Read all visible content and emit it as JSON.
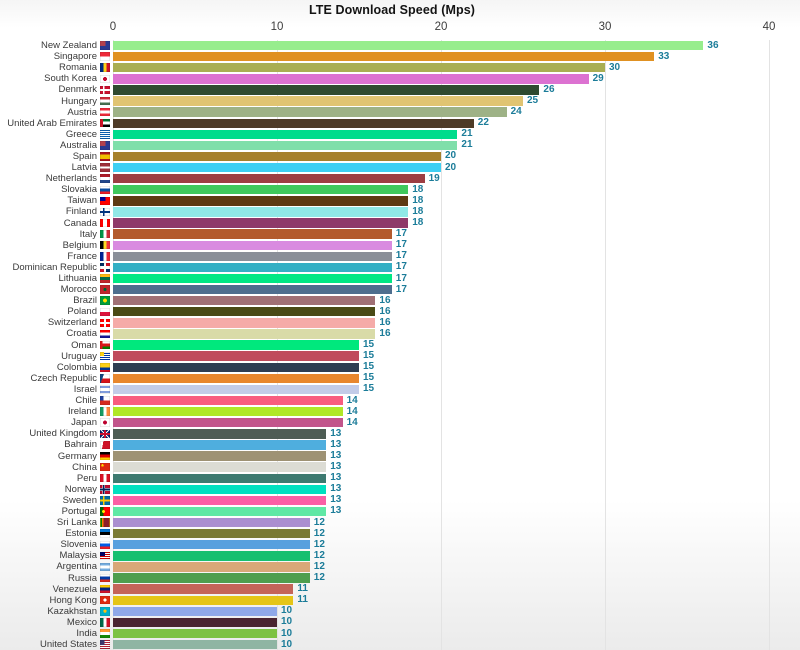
{
  "chart_data": {
    "type": "bar",
    "orientation": "horizontal",
    "title": "LTE Download Speed (Mps)",
    "xlabel": "",
    "ylabel": "",
    "xlim": [
      0,
      40
    ],
    "x_ticks": [
      0,
      10,
      20,
      30,
      40
    ],
    "axis_position": "top",
    "grid": true,
    "value_label_color": "#1b7c99",
    "categories": [
      "New Zealand",
      "Singapore",
      "Romania",
      "South Korea",
      "Denmark",
      "Hungary",
      "Austria",
      "United Arab Emirates",
      "Greece",
      "Australia",
      "Spain",
      "Latvia",
      "Netherlands",
      "Slovakia",
      "Taiwan",
      "Finland",
      "Canada",
      "Italy",
      "Belgium",
      "France",
      "Dominican Republic",
      "Lithuania",
      "Morocco",
      "Brazil",
      "Poland",
      "Switzerland",
      "Croatia",
      "Oman",
      "Uruguay",
      "Colombia",
      "Czech Republic",
      "Israel",
      "Chile",
      "Ireland",
      "Japan",
      "United Kingdom",
      "Bahrain",
      "Germany",
      "China",
      "Peru",
      "Norway",
      "Sweden",
      "Portugal",
      "Sri Lanka",
      "Estonia",
      "Slovenia",
      "Malaysia",
      "Argentina",
      "Russia",
      "Venezuela",
      "Hong Kong",
      "Kazakhstan",
      "Mexico",
      "India",
      "United States"
    ],
    "values": [
      36,
      33,
      30,
      29,
      26,
      25,
      24,
      22,
      21,
      21,
      20,
      20,
      19,
      18,
      18,
      18,
      18,
      17,
      17,
      17,
      17,
      17,
      17,
      16,
      16,
      16,
      16,
      15,
      15,
      15,
      15,
      15,
      14,
      14,
      14,
      13,
      13,
      13,
      13,
      13,
      13,
      13,
      13,
      12,
      12,
      12,
      12,
      12,
      12,
      11,
      11,
      10,
      10,
      10,
      10
    ],
    "bar_colors": [
      "#97ED8D",
      "#E09122",
      "#A9AE52",
      "#DC72D1",
      "#2F4A30",
      "#E0C472",
      "#9EB286",
      "#4E3B27",
      "#00DC8C",
      "#7FDFAA",
      "#A6802B",
      "#3ECFF2",
      "#9D3D42",
      "#3FC85C",
      "#5E3A13",
      "#90E8E6",
      "#8E3A69",
      "#B35A2D",
      "#D98BE0",
      "#8A8F99",
      "#33AFC4",
      "#00E884",
      "#4E6E8E",
      "#A07075",
      "#4A4A15",
      "#F5ABA8",
      "#D9DBA8",
      "#00E87D",
      "#C04B5C",
      "#2E3D52",
      "#E8872E",
      "#C3CCE8",
      "#F85C7F",
      "#B0E828",
      "#C2558B",
      "#4E5D54",
      "#4FAEDE",
      "#9E9274",
      "#DCDCD4",
      "#3D7A70",
      "#00E0C0",
      "#FA5FA5",
      "#5FE8A5",
      "#AB8ED0",
      "#7A7A33",
      "#57A0DE",
      "#17BF70",
      "#D8A878",
      "#4E9E4E",
      "#C46459",
      "#E5C517",
      "#8FA8E8",
      "#4A2430",
      "#7DC242",
      "#8FB5A3"
    ],
    "flag_backgrounds": [
      "linear-gradient(#b5414d,#b5414d) 0 0/55% 55% no-repeat,linear-gradient(#2b3a92,#2b3a92)",
      "linear-gradient(#ed2939 50%,#ffffff 50%)",
      "linear-gradient(90deg,#002b7f 33%,#fcd116 33% 66%,#ce1126 66%)",
      "radial-gradient(circle at 50% 50%,#c60c30 30%,transparent 31%),linear-gradient(#ffffff,#ffffff)",
      "linear-gradient(90deg,transparent 0 30%,#ffffff 30% 45%,transparent 45%),linear-gradient(0deg,transparent 0 38%,#ffffff 38% 62%,transparent 62%),linear-gradient(#c8102e,#c8102e)",
      "linear-gradient(#ce2939 33%,#ffffff 33% 66%,#477050 66%)",
      "linear-gradient(#ed2939 33%,#ffffff 33% 66%,#ed2939 66%)",
      "linear-gradient(90deg,#ce1126 0 28%,transparent 28%),linear-gradient(#00732f 33%,#ffffff 33% 66%,#000000 66%)",
      "repeating-linear-gradient(#0d5eaf 0 1px,#ffffff 1px 2px)",
      "linear-gradient(#b5414d,#b5414d) 0 0/55% 55% no-repeat,linear-gradient(#2b3a92,#2b3a92)",
      "linear-gradient(#aa151b 25%,#f1bf00 25% 75%,#aa151b 75%)",
      "linear-gradient(#9e3039 38%,#ffffff 38% 62%,#9e3039 62%)",
      "linear-gradient(#ae1c28 33%,#ffffff 33% 66%,#21468b 66%)",
      "linear-gradient(#ffffff 33%,#0b4ea2 33% 66%,#ee1c25 66%)",
      "linear-gradient(#000095,#000095) 0 0/55% 55% no-repeat,linear-gradient(#fe0000,#fe0000)",
      "linear-gradient(90deg,transparent 0 28%,#003580 28% 45%,transparent 45%),linear-gradient(0deg,transparent 0 38%,#003580 38% 62%,transparent 62%),linear-gradient(#ffffff,#ffffff)",
      "linear-gradient(90deg,#ff0000 30%,#ffffff 30% 70%,#ff0000 70%)",
      "linear-gradient(90deg,#009246 33%,#ffffff 33% 66%,#ce2b37 66%)",
      "linear-gradient(90deg,#000000 33%,#fdda24 33% 66%,#ef3340 66%)",
      "linear-gradient(90deg,#002395 33%,#ffffff 33% 66%,#ed2939 66%)",
      "linear-gradient(90deg,transparent 0 40%,#ffffff 40% 60%,transparent 60%),linear-gradient(0deg,transparent 0 35%,#ffffff 35% 65%,transparent 65%),linear-gradient(180deg,#002d62 50%,#ce1126 50%) 0 0/50% 100% no-repeat,linear-gradient(180deg,#ce1126 50%,#002d62 50%) 100% 0/50% 100% no-repeat",
      "linear-gradient(#fdb913 33%,#006a44 33% 66%,#c1272d 66%)",
      "radial-gradient(circle at 50% 50%,#006233 22%,transparent 23%),linear-gradient(#c1272d,#c1272d)",
      "radial-gradient(circle at 50% 50%,#ffdf00 28%,transparent 29%),linear-gradient(#009c3b,#009c3b)",
      "linear-gradient(#ffffff 50%,#dc143c 50%)",
      "linear-gradient(90deg,transparent 0 38%,#ffffff 38% 62%,transparent 62%),linear-gradient(0deg,transparent 0 38%,#ffffff 38% 62%,transparent 62%),linear-gradient(#ff0000,#ff0000)",
      "linear-gradient(#ff0000 33%,#ffffff 33% 66%,#171796 66%)",
      "linear-gradient(90deg,#db161b 0 25%,transparent 25%),linear-gradient(#ffffff 33%,#db161b 33% 66%,#008000 66%)",
      "linear-gradient(#fcd116,#fcd116) 0 0/40% 50% no-repeat,repeating-linear-gradient(#ffffff 0 1px,#0038a8 1px 2px)",
      "linear-gradient(#fcd116 50%,#003893 50% 75%,#ce1126 75%)",
      "linear-gradient(110deg,#11457e 0 30%,transparent 30%),linear-gradient(#ffffff 50%,#d7141a 50%)",
      "linear-gradient(#ffffff 0 15%,#0038b8 15% 28%,#ffffff 28% 72%,#0038b8 72% 85%,#ffffff 85%)",
      "linear-gradient(#1f3f9e,#1f3f9e) 0 0/35% 50% no-repeat,linear-gradient(#ffffff 50%,#d52b1e 50%)",
      "linear-gradient(90deg,#169b62 33%,#ffffff 33% 66%,#ff883e 66%)",
      "radial-gradient(circle at 50% 50%,#bc002d 28%,transparent 29%),linear-gradient(#ffffff,#ffffff)",
      "linear-gradient(0deg,transparent 0 36%,#c8102e 36% 64%,transparent 64%),linear-gradient(90deg,transparent 0 40%,#c8102e 40% 60%,transparent 60%),linear-gradient(45deg,transparent 0 45%,#ffffff 45% 55%,transparent 55%),linear-gradient(135deg,transparent 0 45%,#ffffff 45% 55%,transparent 55%),linear-gradient(#012169,#012169)",
      "linear-gradient(100deg,#ffffff 0 30%,#ce1126 30%)",
      "linear-gradient(#000000 33%,#dd0000 33% 66%,#ffce00 66%)",
      "radial-gradient(circle at 25% 30%,#ffde00 13%,transparent 14%),linear-gradient(#de2910,#de2910)",
      "linear-gradient(90deg,#d91023 33%,#ffffff 33% 66%,#d91023 66%)",
      "linear-gradient(90deg,transparent 0 30%,#00205b 30% 44%,transparent 44%),linear-gradient(0deg,transparent 0 40%,#00205b 40% 60%,transparent 60%),linear-gradient(90deg,transparent 0 24%,#ffffff 24% 50%,transparent 50%),linear-gradient(0deg,transparent 0 33%,#ffffff 33% 67%,transparent 67%),linear-gradient(#ba0c2f,#ba0c2f)",
      "linear-gradient(90deg,transparent 0 28%,#fecc02 28% 44%,transparent 44%),linear-gradient(0deg,transparent 0 38%,#fecc02 38% 62%,transparent 62%),linear-gradient(#006aa7,#006aa7)",
      "radial-gradient(circle at 35% 50%,#ffe900 18%,transparent 19%),linear-gradient(90deg,#006600 35%,#ff0000 35%)",
      "linear-gradient(90deg,#ffb700 0 6%,#008000 6% 20%,#ff7a00 20% 34%,#8d2029 34% 94%,#ffb700 94%)",
      "linear-gradient(#0072ce 33%,#000000 33% 66%,#ffffff 66%)",
      "linear-gradient(#ffffff 33%,#005ce5 33% 66%,#ed1c24 66%)",
      "linear-gradient(#010066,#010066) 0 0/50% 55% no-repeat,repeating-linear-gradient(#cc0001 0 1px,#ffffff 1px 2px)",
      "linear-gradient(#74acdf 33%,#ffffff 33% 66%,#74acdf 66%)",
      "linear-gradient(#ffffff 33%,#0039a6 33% 66%,#d52b1e 66%)",
      "linear-gradient(#ffcc00 33%,#00247d 33% 66%,#cf142b 66%)",
      "radial-gradient(circle at 50% 50%,#ffffff 24%,transparent 25%),linear-gradient(#de2910,#de2910)",
      "radial-gradient(circle at 50% 45%,#fec50c 24%,transparent 25%),linear-gradient(#00afca,#00afca)",
      "linear-gradient(90deg,#006847 33%,#ffffff 33% 66%,#ce1126 66%)",
      "linear-gradient(#ff9933 33%,#ffffff 33% 66%,#138808 66%)",
      "linear-gradient(#3c3b6e,#3c3b6e) 0 0/45% 55% no-repeat,repeating-linear-gradient(#b22234 0 1px,#ffffff 1px 2px)"
    ]
  }
}
